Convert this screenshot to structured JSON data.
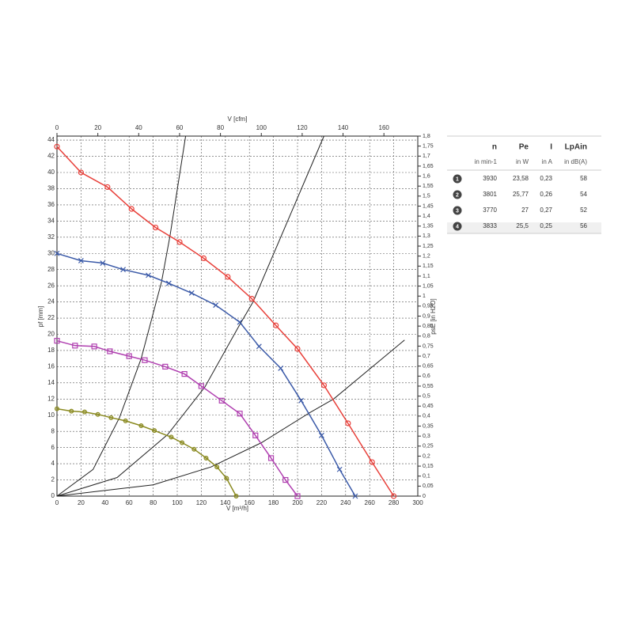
{
  "chart_data": {
    "type": "line",
    "xlabel": "V [m³/h]",
    "x2label": "V [cfm]",
    "ylabel": "pf [mm]",
    "y2label": "psE [in H2O]",
    "xlim": [
      0,
      300
    ],
    "xticks": [
      0,
      20,
      40,
      60,
      80,
      100,
      120,
      140,
      160,
      180,
      200,
      220,
      240,
      260,
      280,
      300
    ],
    "x2lim": [
      0,
      176.57
    ],
    "x2ticks": [
      0,
      20,
      40,
      60,
      80,
      100,
      120,
      140,
      160
    ],
    "ylim": [
      0,
      44.5
    ],
    "yticks": [
      0,
      2,
      4,
      6,
      8,
      10,
      12,
      14,
      16,
      18,
      20,
      22,
      24,
      26,
      28,
      30,
      32,
      34,
      36,
      38,
      40,
      42,
      44
    ],
    "y2lim": [
      0,
      1.8
    ],
    "y2ticks": [
      0,
      {
        "value": 0.05,
        "label": "0,05"
      },
      {
        "value": 0.1,
        "label": "0,1"
      },
      {
        "value": 0.15,
        "label": "0,15"
      },
      {
        "value": 0.2,
        "label": "0,2"
      },
      {
        "value": 0.25,
        "label": "0,25"
      },
      {
        "value": 0.3,
        "label": "0,3"
      },
      {
        "value": 0.35,
        "label": "0,35"
      },
      {
        "value": 0.4,
        "label": "0,4"
      },
      {
        "value": 0.45,
        "label": "0,45"
      },
      {
        "value": 0.5,
        "label": "0,5"
      },
      {
        "value": 0.55,
        "label": "0,55"
      },
      {
        "value": 0.6,
        "label": "0,6"
      },
      {
        "value": 0.65,
        "label": "0,65"
      },
      {
        "value": 0.7,
        "label": "0,7"
      },
      {
        "value": 0.75,
        "label": "0,75"
      },
      {
        "value": 0.8,
        "label": "0,8"
      },
      {
        "value": 0.85,
        "label": "0,85"
      },
      {
        "value": 0.9,
        "label": "0,9"
      },
      {
        "value": 0.95,
        "label": "0,95"
      },
      1,
      {
        "value": 1.05,
        "label": "1,05"
      },
      {
        "value": 1.1,
        "label": "1,1"
      },
      {
        "value": 1.15,
        "label": "1,15"
      },
      {
        "value": 1.2,
        "label": "1,2"
      },
      {
        "value": 1.25,
        "label": "1,25"
      },
      {
        "value": 1.3,
        "label": "1,3"
      },
      {
        "value": 1.35,
        "label": "1,35"
      },
      {
        "value": 1.4,
        "label": "1,4"
      },
      {
        "value": 1.45,
        "label": "1,45"
      },
      {
        "value": 1.5,
        "label": "1,5"
      },
      {
        "value": 1.55,
        "label": "1,55"
      },
      {
        "value": 1.6,
        "label": "1,6"
      },
      {
        "value": 1.65,
        "label": "1,65"
      },
      {
        "value": 1.7,
        "label": "1,7"
      },
      {
        "value": 1.75,
        "label": "1,75"
      },
      {
        "value": 1.8,
        "label": "1,8"
      }
    ],
    "grid": true,
    "series": [
      {
        "name": "1",
        "color": "#e8403a",
        "marker": "circle",
        "x": [
          0,
          20,
          42,
          62,
          82,
          102,
          122,
          142,
          162,
          182,
          200,
          222,
          242,
          262,
          280
        ],
        "values": [
          43.2,
          40,
          38.2,
          35.5,
          33.2,
          31.4,
          29.4,
          27.1,
          24.4,
          21.1,
          18.2,
          13.7,
          9,
          4.2,
          0
        ]
      },
      {
        "name": "2",
        "color": "#3b5aa8",
        "marker": "cross",
        "x": [
          0,
          20,
          38,
          55,
          76,
          93,
          112,
          132,
          152,
          168,
          186,
          203,
          220,
          235,
          248
        ],
        "values": [
          30,
          29.1,
          28.8,
          28,
          27.3,
          26.3,
          25.1,
          23.6,
          21.5,
          18.5,
          15.8,
          11.8,
          7.5,
          3.3,
          0
        ]
      },
      {
        "name": "3",
        "color": "#b040b0",
        "marker": "square",
        "x": [
          0,
          15,
          31,
          44,
          60,
          73,
          90,
          106,
          120,
          137,
          152,
          165,
          178,
          190,
          200
        ],
        "values": [
          19.2,
          18.6,
          18.5,
          17.9,
          17.3,
          16.8,
          16,
          15.1,
          13.6,
          11.8,
          10.2,
          7.5,
          4.7,
          2,
          0
        ]
      },
      {
        "name": "4",
        "color": "#8a8a20",
        "marker": "diamond",
        "x": [
          0,
          12,
          23,
          34,
          45,
          57,
          70,
          81,
          95,
          104,
          114,
          124,
          133,
          141,
          149
        ],
        "values": [
          10.8,
          10.5,
          10.4,
          10.1,
          9.7,
          9.3,
          8.7,
          8.1,
          7.3,
          6.6,
          5.8,
          4.7,
          3.6,
          2.2,
          0
        ]
      }
    ],
    "system_curves": [
      {
        "color": "#222222",
        "x": [
          0,
          30,
          52,
          70,
          87,
          94,
          107
        ],
        "values": [
          0,
          3.3,
          9.7,
          17,
          26.5,
          32.2,
          44.5
        ]
      },
      {
        "color": "#222222",
        "x": [
          0,
          50,
          92,
          123,
          152,
          163,
          222
        ],
        "values": [
          0,
          2.3,
          7.6,
          13.5,
          21.2,
          24,
          44.5
        ]
      },
      {
        "color": "#222222",
        "x": [
          0,
          80,
          128,
          170,
          210,
          230,
          289
        ],
        "values": [
          0,
          1.4,
          3.6,
          6.6,
          10.3,
          12,
          19.3
        ]
      }
    ]
  },
  "table": {
    "headers": [
      "n",
      "Pe",
      "I",
      "LpAin"
    ],
    "units": [
      "in min-1",
      "in W",
      "in A",
      "in dB(A)"
    ],
    "rows": [
      [
        "3930",
        "23,58",
        "0,23",
        "58"
      ],
      [
        "3801",
        "25,77",
        "0,26",
        "54"
      ],
      [
        "3770",
        "27",
        "0,27",
        "52"
      ],
      [
        "3833",
        "25,5",
        "0,25",
        "56"
      ]
    ]
  }
}
